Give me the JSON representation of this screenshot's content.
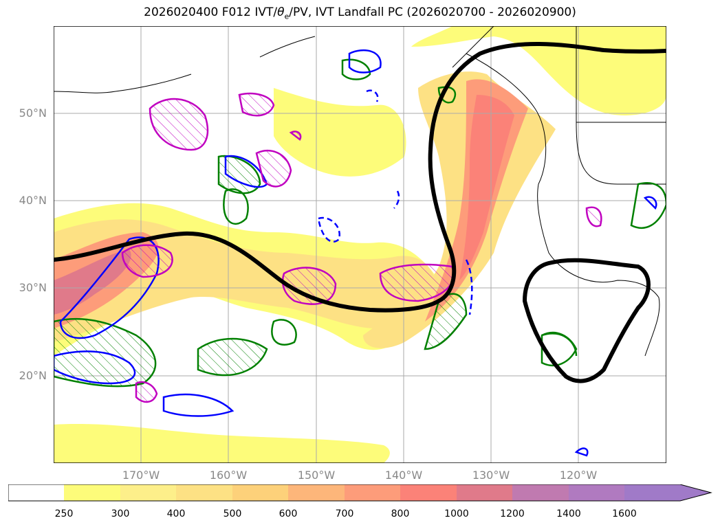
{
  "title": {
    "prefix": "2026020400 F012 IVT/",
    "theta": "θ",
    "sub": "e",
    "suffix": "/PV, IVT Landfall PC (2026020700 - 2026020900)"
  },
  "map": {
    "lon_labels": [
      "170°W",
      "160°W",
      "150°W",
      "140°W",
      "130°W",
      "120°W"
    ],
    "lat_labels": [
      "50°N",
      "40°N",
      "30°N",
      "20°N"
    ],
    "lon_range": [
      -180,
      -110
    ],
    "lat_range": [
      10,
      60
    ]
  },
  "colorbar": {
    "ticks": [
      "250",
      "300",
      "400",
      "500",
      "600",
      "700",
      "800",
      "1000",
      "1200",
      "1400",
      "1600"
    ],
    "colors": [
      "#ffffff",
      "#fdfc7a",
      "#fdef8a",
      "#fde184",
      "#fdd17a",
      "#fdb67a",
      "#fd9c7a",
      "#fb8278",
      "#e07a8a",
      "#c07ab0",
      "#a07ac8"
    ],
    "extend": "max"
  },
  "legend_colors": {
    "contour_black": "#000000",
    "pv_magenta": "#c000c0",
    "theta_blue": "#0000ff",
    "theta_green": "#008000"
  }
}
